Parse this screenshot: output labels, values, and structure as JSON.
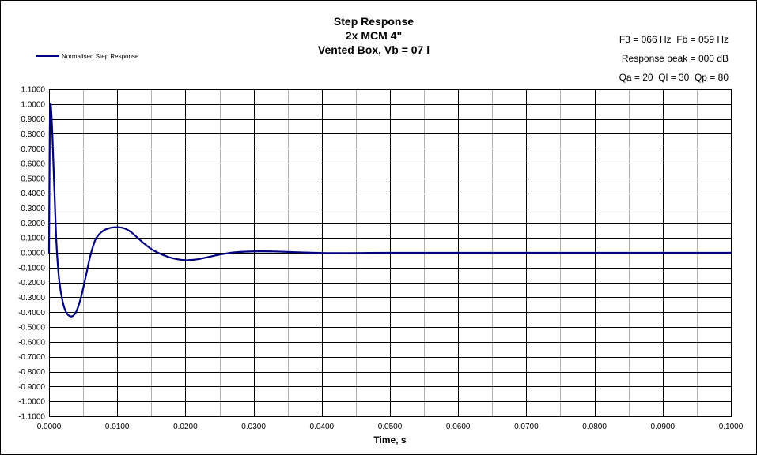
{
  "chart_data": {
    "type": "line",
    "title": [
      "Step Response",
      "2x MCM 4\"",
      "Vented Box, Vb = 07 l"
    ],
    "info": [
      "F3 = 066 Hz  Fb = 059 Hz",
      "Response peak = 000 dB",
      "Qa = 20  Ql = 30  Qp = 80"
    ],
    "xlabel": "Time, s",
    "ylabel": "",
    "xlim": [
      0,
      0.1
    ],
    "ylim": [
      -1.1,
      1.1
    ],
    "x_ticks": [
      "0.0000",
      "0.0100",
      "0.0200",
      "0.0300",
      "0.0400",
      "0.0500",
      "0.0600",
      "0.0700",
      "0.0800",
      "0.0900",
      "0.1000"
    ],
    "y_ticks": [
      "1.1000",
      "1.0000",
      "0.9000",
      "0.8000",
      "0.7000",
      "0.6000",
      "0.5000",
      "0.4000",
      "0.3000",
      "0.2000",
      "0.1000",
      "0.0000",
      "-0.1000",
      "-0.2000",
      "-0.3000",
      "-0.4000",
      "-0.5000",
      "-0.6000",
      "-0.7000",
      "-0.8000",
      "-0.9000",
      "-1.0000",
      "-1.1000"
    ],
    "grid": true,
    "legend_position": "top-left",
    "series": [
      {
        "name": "Normalised Step Response",
        "color": "#000080",
        "points": [
          [
            0.0,
            0.0
          ],
          [
            0.0001,
            0.8
          ],
          [
            0.0002,
            0.985
          ],
          [
            0.0003,
            0.97
          ],
          [
            0.0005,
            0.78
          ],
          [
            0.0008,
            0.4
          ],
          [
            0.0011,
            0.05
          ],
          [
            0.0015,
            -0.19
          ],
          [
            0.002,
            -0.33
          ],
          [
            0.0025,
            -0.4
          ],
          [
            0.003,
            -0.425
          ],
          [
            0.0035,
            -0.425
          ],
          [
            0.004,
            -0.395
          ],
          [
            0.0045,
            -0.33
          ],
          [
            0.005,
            -0.24
          ],
          [
            0.0055,
            -0.135
          ],
          [
            0.006,
            -0.03
          ],
          [
            0.0065,
            0.05
          ],
          [
            0.007,
            0.105
          ],
          [
            0.008,
            0.15
          ],
          [
            0.009,
            0.168
          ],
          [
            0.01,
            0.172
          ],
          [
            0.011,
            0.165
          ],
          [
            0.012,
            0.14
          ],
          [
            0.013,
            0.1
          ],
          [
            0.014,
            0.06
          ],
          [
            0.015,
            0.025
          ],
          [
            0.016,
            0.0
          ],
          [
            0.017,
            -0.02
          ],
          [
            0.018,
            -0.035
          ],
          [
            0.019,
            -0.045
          ],
          [
            0.02,
            -0.05
          ],
          [
            0.021,
            -0.048
          ],
          [
            0.022,
            -0.042
          ],
          [
            0.023,
            -0.032
          ],
          [
            0.024,
            -0.022
          ],
          [
            0.025,
            -0.012
          ],
          [
            0.027,
            0.002
          ],
          [
            0.029,
            0.008
          ],
          [
            0.031,
            0.01
          ],
          [
            0.033,
            0.009
          ],
          [
            0.035,
            0.006
          ],
          [
            0.037,
            0.003
          ],
          [
            0.04,
            -0.001
          ],
          [
            0.043,
            -0.002
          ],
          [
            0.046,
            -0.001
          ],
          [
            0.05,
            0.0
          ],
          [
            0.06,
            0.0
          ],
          [
            0.07,
            0.0
          ],
          [
            0.08,
            0.0
          ],
          [
            0.09,
            0.0
          ],
          [
            0.1,
            0.0
          ]
        ]
      }
    ]
  }
}
